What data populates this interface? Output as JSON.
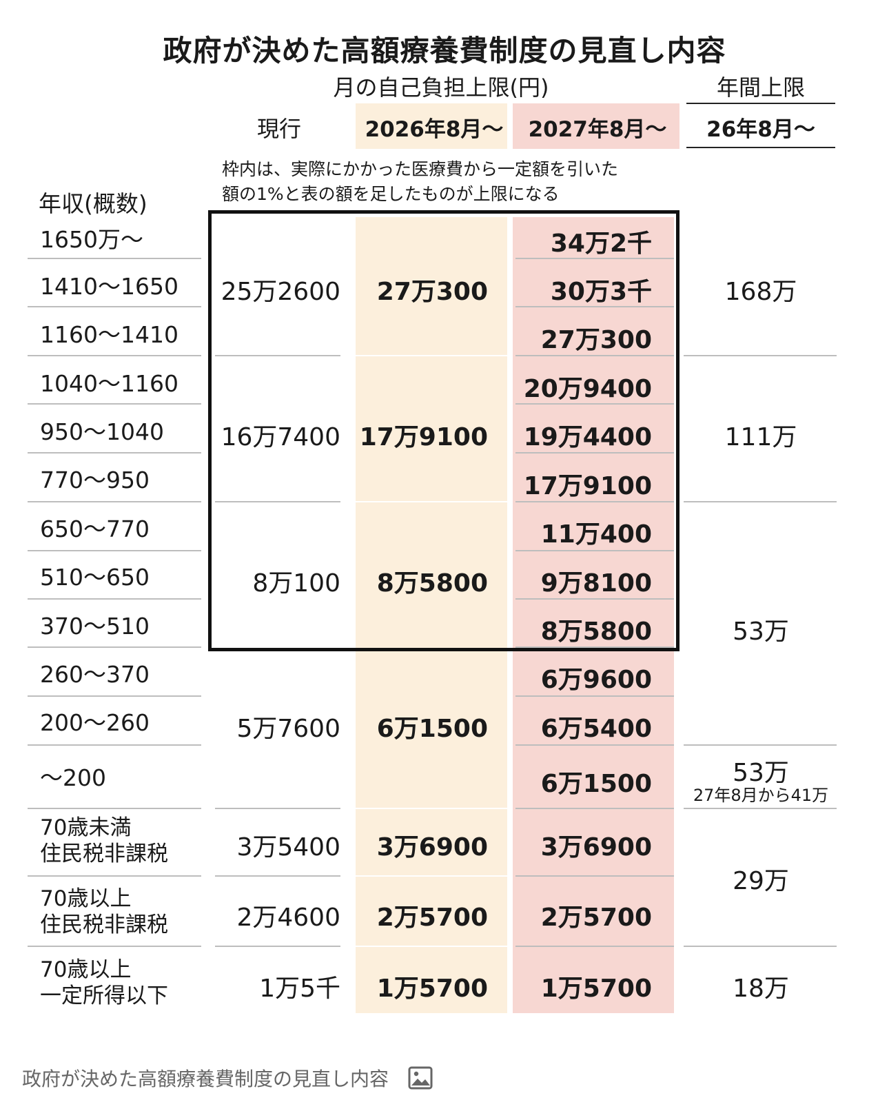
{
  "title": "政府が決めた高額療養費制度の見直し内容",
  "headers": {
    "monthly_group": "月の自己負担上限(円)",
    "annual_group": "年間上限",
    "current": "現行",
    "aug2026": "2026年8月～",
    "aug2027": "2027年8月～",
    "annual_from": "26年8月～"
  },
  "note": {
    "line1": "枠内は、実際にかかった医療費から一定額を引いた",
    "line2": "額の1%と表の額を足したものが上限になる"
  },
  "income_header": "年収(概数)",
  "incomes": [
    "1650万～",
    "1410～1650",
    "1160～1410",
    "1040～1160",
    "950～1040",
    "770～950",
    "650～770",
    "510～650",
    "370～510",
    "260～370",
    "200～260",
    "～200"
  ],
  "special_rows": [
    {
      "line1": "70歳未満",
      "line2": "住民税非課税"
    },
    {
      "line1": "70歳以上",
      "line2": "住民税非課税"
    },
    {
      "line1": "70歳以上",
      "line2": "一定所得以下"
    }
  ],
  "current_values": [
    "25万2600",
    "16万7400",
    "8万100",
    "5万7600",
    "3万5400",
    "2万4600",
    "1万5千"
  ],
  "aug2026_values": [
    "27万300",
    "17万9100",
    "8万5800",
    "6万1500",
    "3万6900",
    "2万5700",
    "1万5700"
  ],
  "aug2027_values": [
    "34万2千",
    "30万3千",
    "27万300",
    "20万9400",
    "19万4400",
    "17万9100",
    "11万400",
    "9万8100",
    "8万5800",
    "6万9600",
    "6万5400",
    "6万1500",
    "3万6900",
    "2万5700",
    "1万5700"
  ],
  "annual_values": [
    "168万",
    "111万",
    "53万",
    "53万",
    "29万",
    "18万"
  ],
  "annual_note": "27年8月から41万",
  "caption": "政府が決めた高額療養費制度の見直し内容",
  "colors": {
    "cream": "#fcefdc",
    "pink": "#f7d7d2",
    "frame": "#111111",
    "caption": "#666666"
  },
  "icons": {
    "caption_icon": "image-icon"
  }
}
